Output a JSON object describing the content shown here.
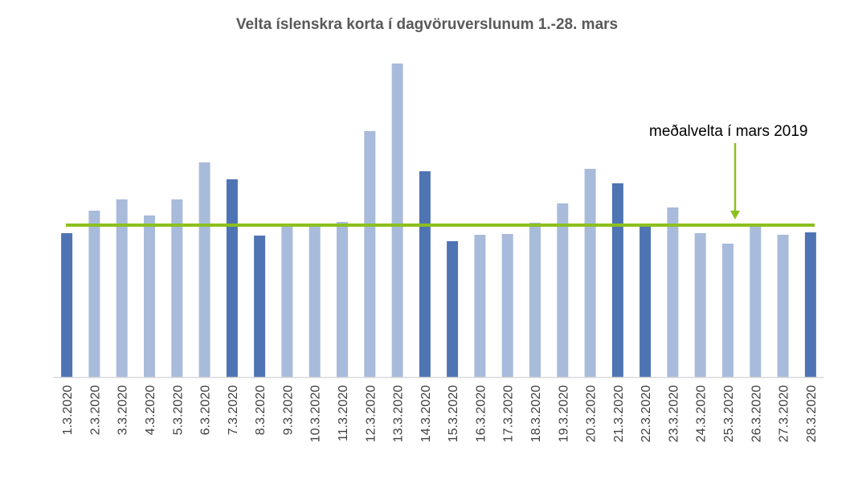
{
  "chart_data": {
    "type": "bar",
    "title": "Velta íslenskra korta í dagvöruverslunum 1.-28. mars",
    "categories": [
      "1.3.2020",
      "2.3.2020",
      "3.3.2020",
      "4.3.2020",
      "5.3.2020",
      "6.3.2020",
      "7.3.2020",
      "8.3.2020",
      "9.3.2020",
      "10.3.2020",
      "11.3.2020",
      "12.3.2020",
      "13.3.2020",
      "14.3.2020",
      "15.3.2020",
      "16.3.2020",
      "17.3.2020",
      "18.3.2020",
      "19.3.2020",
      "20.3.2020",
      "21.3.2020",
      "22.3.2020",
      "23.3.2020",
      "24.3.2020",
      "25.3.2020",
      "26.3.2020",
      "27.3.2020",
      "28.3.2020"
    ],
    "values": [
      179,
      207,
      221,
      201,
      221,
      267,
      246,
      176,
      189,
      189,
      193,
      306,
      390,
      256,
      169,
      177,
      178,
      192,
      216,
      259,
      241,
      189,
      211,
      179,
      166,
      188,
      177,
      180
    ],
    "highlighted": [
      true,
      false,
      false,
      false,
      false,
      false,
      true,
      true,
      false,
      false,
      false,
      false,
      false,
      true,
      true,
      false,
      false,
      false,
      false,
      false,
      true,
      true,
      false,
      false,
      false,
      false,
      false,
      true
    ],
    "reference_line": {
      "label": "meðalvelta í mars 2019",
      "value": 189
    },
    "ylim": [
      0,
      400
    ],
    "grid": false,
    "colors": {
      "highlight": "#4f74b3",
      "normal": "#a8bbdb",
      "reference": "#8cbf1f",
      "axis": "#d9d9d9"
    }
  }
}
